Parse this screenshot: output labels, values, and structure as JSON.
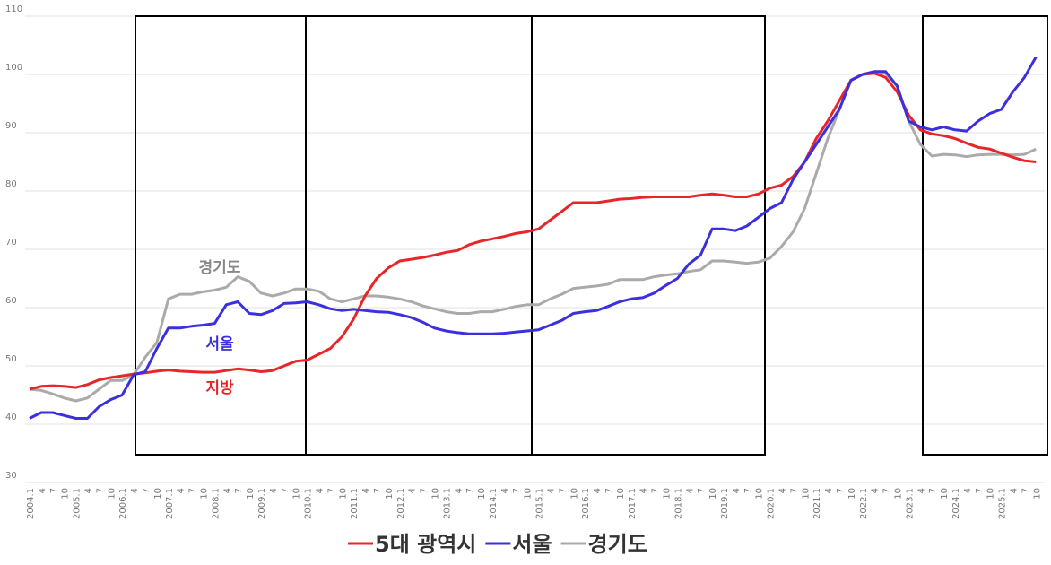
{
  "chart_data": {
    "type": "line",
    "categories": [
      "2004.1",
      "4",
      "7",
      "10",
      "2005.1",
      "4",
      "7",
      "10",
      "2006.1",
      "4",
      "7",
      "10",
      "2007.1",
      "4",
      "7",
      "10",
      "2008.1",
      "4",
      "7",
      "10",
      "2009.1",
      "4",
      "7",
      "10",
      "2010.1",
      "4",
      "7",
      "10",
      "2011.1",
      "4",
      "7",
      "10",
      "2012.1",
      "4",
      "7",
      "10",
      "2013.1",
      "4",
      "7",
      "10",
      "2014.1",
      "4",
      "7",
      "10",
      "2015.1",
      "4",
      "7",
      "10",
      "2016.1",
      "4",
      "7",
      "10",
      "2017.1",
      "4",
      "7",
      "10",
      "2018.1",
      "4",
      "7",
      "10",
      "2019.1",
      "4",
      "7",
      "10",
      "2020.1",
      "4",
      "7",
      "10",
      "2021.1",
      "4",
      "7",
      "10",
      "2022.1",
      "4",
      "7",
      "10",
      "2023.1",
      "4",
      "7",
      "10",
      "2024.1",
      "4",
      "7",
      "10",
      "2025.1",
      "4",
      "7",
      "10"
    ],
    "series": [
      {
        "name": "5대 광역시",
        "color": "#e8262a",
        "values": [
          46,
          46.5,
          46.6,
          46.5,
          46.3,
          46.8,
          47.6,
          48,
          48.3,
          48.6,
          48.8,
          49.1,
          49.3,
          49.1,
          49,
          48.9,
          48.9,
          49.2,
          49.5,
          49.3,
          49,
          49.2,
          50,
          50.8,
          51,
          52,
          53,
          55,
          58,
          62,
          65,
          66.8,
          68,
          68.3,
          68.6,
          69,
          69.5,
          69.8,
          70.8,
          71.4,
          71.8,
          72.2,
          72.7,
          73,
          73.5,
          75,
          76.5,
          78,
          78,
          78,
          78.3,
          78.6,
          78.7,
          78.9,
          79,
          79,
          79,
          79,
          79.3,
          79.5,
          79.3,
          79,
          79,
          79.5,
          80.5,
          81,
          82.5,
          85,
          89,
          92,
          95.5,
          99,
          100,
          100.2,
          99.5,
          97,
          93,
          90.5,
          89.8,
          89.5,
          89,
          88.2,
          87.5,
          87.2,
          86.5,
          85.8,
          85.2,
          85
        ]
      },
      {
        "name": "서울",
        "color": "#3b2fe0",
        "values": [
          41,
          42,
          42,
          41.5,
          41,
          41,
          43,
          44.2,
          45,
          48.5,
          49,
          53,
          56.5,
          56.5,
          56.8,
          57,
          57.3,
          60.5,
          61,
          59,
          58.8,
          59.5,
          60.7,
          60.8,
          61,
          60.5,
          59.8,
          59.5,
          59.7,
          59.5,
          59.3,
          59.2,
          58.8,
          58.3,
          57.5,
          56.5,
          56,
          55.7,
          55.5,
          55.5,
          55.5,
          55.6,
          55.8,
          56,
          56.2,
          57,
          57.8,
          59,
          59.3,
          59.5,
          60.2,
          61,
          61.5,
          61.7,
          62.5,
          63.8,
          65,
          67.5,
          69,
          73.5,
          73.5,
          73.2,
          74,
          75.5,
          77,
          78,
          82,
          85,
          88,
          91,
          94,
          99,
          100,
          100.5,
          100.5,
          98,
          92,
          91,
          90.5,
          91,
          90.5,
          90.3,
          92,
          93.3,
          94,
          97,
          99.5,
          103
        ]
      },
      {
        "name": "경기도",
        "color": "#aaaaaa",
        "values": [
          46,
          45.8,
          45.2,
          44.5,
          44,
          44.5,
          46,
          47.5,
          47.5,
          48.5,
          51.5,
          54,
          61.5,
          62.3,
          62.3,
          62.7,
          63,
          63.5,
          65.3,
          64.5,
          62.5,
          62,
          62.5,
          63.2,
          63.2,
          62.8,
          61.5,
          61,
          61.5,
          62,
          62,
          61.8,
          61.5,
          61,
          60.3,
          59.8,
          59.3,
          59,
          59,
          59.3,
          59.3,
          59.7,
          60.2,
          60.5,
          60.5,
          61.5,
          62.3,
          63.3,
          63.5,
          63.7,
          64,
          64.8,
          64.8,
          64.8,
          65.3,
          65.6,
          65.8,
          66.2,
          66.5,
          68,
          68,
          67.8,
          67.6,
          67.8,
          68.5,
          70.5,
          73,
          77,
          83,
          89,
          94,
          99,
          100,
          100.3,
          100.2,
          98,
          92,
          88,
          86,
          86.3,
          86.2,
          85.9,
          86.2,
          86.3,
          86.3,
          86.2,
          86.3,
          87.2
        ]
      }
    ],
    "annotations": [
      {
        "text": "경기도",
        "color": "#888888"
      },
      {
        "text": "서울",
        "color": "#3b2fe0"
      },
      {
        "text": "지방",
        "color": "#e8262a"
      }
    ],
    "ylim": [
      30,
      110
    ],
    "yticks": [
      30,
      40,
      50,
      60,
      70,
      80,
      90,
      100,
      110
    ],
    "grid": true
  }
}
